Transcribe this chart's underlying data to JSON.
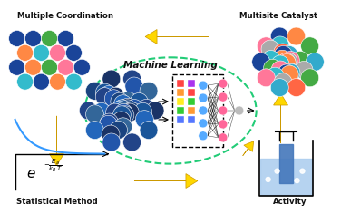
{
  "bg_color": "#ffffff",
  "title_top_left": "Multiple Coordination",
  "title_top_right": "Multisite Catalyst",
  "title_bot_left": "Statistical Method",
  "title_bot_right": "Activity",
  "title_center": "Machine Learning",
  "arrow_color": "#FFD700",
  "ellipse_color": "#22CC77",
  "text_color": "#111111",
  "blue_curve_color": "#3399FF",
  "beaker_light": "#AACCEE",
  "nn_colors": [
    "#FF4444",
    "#FF9933",
    "#FFEE22",
    "#33CC33",
    "#5577FF",
    "#AA33EE",
    "#FF4444",
    "#33CC33",
    "#FF9933",
    "#5577FF"
  ],
  "blue_atom_colors": [
    "#1a3366",
    "#224488",
    "#2255AA",
    "#336699",
    "#1a4480",
    "#1a5599",
    "#2266BB"
  ],
  "coord_colors_r1": [
    "#1a4499",
    "#1a4499",
    "#44aa44",
    "#1a4499"
  ],
  "coord_colors_r2": [
    "#FF8844",
    "#33BBCC",
    "#FF7799",
    "#1a4499"
  ],
  "coord_colors_r3": [
    "#1a4499",
    "#FF8844",
    "#44aa44",
    "#FF7799",
    "#1a4499"
  ],
  "coord_colors_r4": [
    "#33BBCC",
    "#1a4499",
    "#FF8844",
    "#33BBCC"
  ],
  "multisite_colors": [
    "#1a4499",
    "#FF8844",
    "#33BBCC",
    "#44aa44",
    "#FF7799",
    "#AAAAAA",
    "#FF6644",
    "#33AACC"
  ]
}
